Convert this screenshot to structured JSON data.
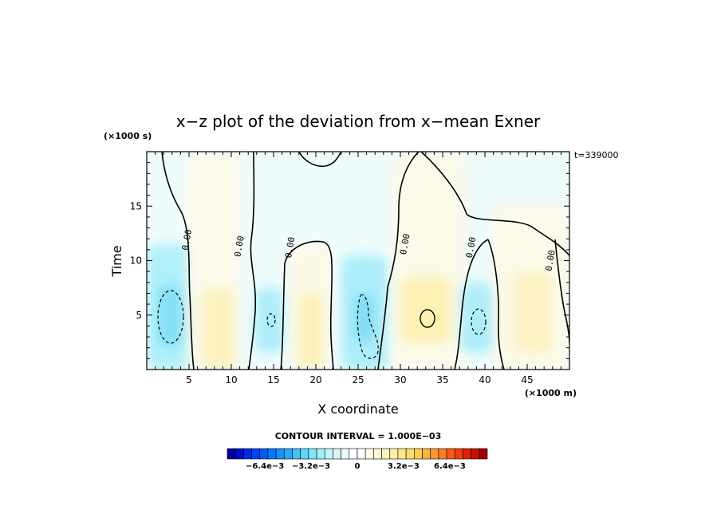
{
  "chart_data": {
    "type": "heatmap",
    "title": "x−z plot of the deviation from x−mean Exner",
    "xlabel": "X coordinate",
    "ylabel": "Time",
    "x_unit": "(×1000 m)",
    "y_unit": "(×1000 s)",
    "time_label": "t=339000",
    "xlim": [
      0,
      50
    ],
    "ylim": [
      0,
      20
    ],
    "x_ticks": [
      5,
      10,
      15,
      20,
      25,
      30,
      35,
      40,
      45
    ],
    "y_ticks": [
      5,
      10,
      15
    ],
    "contour_interval_text": "CONTOUR INTERVAL = 1.000E−03",
    "contour_label": "0.00",
    "colorbar": {
      "tick_labels": [
        "−6.4e−3",
        "−3.2e−3",
        "0",
        "3.2e−3",
        "6.4e−3"
      ],
      "tick_values": [
        -0.0064,
        -0.0032,
        0,
        0.0032,
        0.0064
      ],
      "range": [
        -0.009,
        0.009
      ],
      "colors": [
        "#0000a0",
        "#0010c8",
        "#0028e6",
        "#0044f5",
        "#005cf8",
        "#0078fa",
        "#1690fa",
        "#2aa8fa",
        "#44c0fa",
        "#60d4fa",
        "#80e4fa",
        "#a0f0fa",
        "#c0f8fa",
        "#daf8fa",
        "#eefafa",
        "#ffffff",
        "#ffffff",
        "#fefce8",
        "#fcf8d4",
        "#fcf4c0",
        "#fcf0a4",
        "#fce888",
        "#fcdc6c",
        "#fccc50",
        "#fcb43c",
        "#fc9830",
        "#fc7c24",
        "#f85c18",
        "#f03c10",
        "#e02008",
        "#c81000",
        "#a00000"
      ]
    },
    "zero_contour_label_positions": [
      {
        "x": 4.8,
        "y": 11.9
      },
      {
        "x": 11.0,
        "y": 11.3
      },
      {
        "x": 17.0,
        "y": 11.2
      },
      {
        "x": 30.6,
        "y": 11.5
      },
      {
        "x": 38.4,
        "y": 11.2
      },
      {
        "x": 47.8,
        "y": 10.0
      }
    ],
    "extrema": [
      {
        "x": 2.8,
        "y": 5.0,
        "sign": "negative",
        "value": -0.0015
      },
      {
        "x": 14.8,
        "y": 4.5,
        "sign": "negative",
        "value": -0.0012
      },
      {
        "x": 25.8,
        "y": 4.5,
        "sign": "negative",
        "value": -0.0013
      },
      {
        "x": 33.5,
        "y": 4.7,
        "sign": "positive",
        "value": 0.0011
      },
      {
        "x": 39.1,
        "y": 4.6,
        "sign": "negative",
        "value": -0.0013
      }
    ]
  }
}
